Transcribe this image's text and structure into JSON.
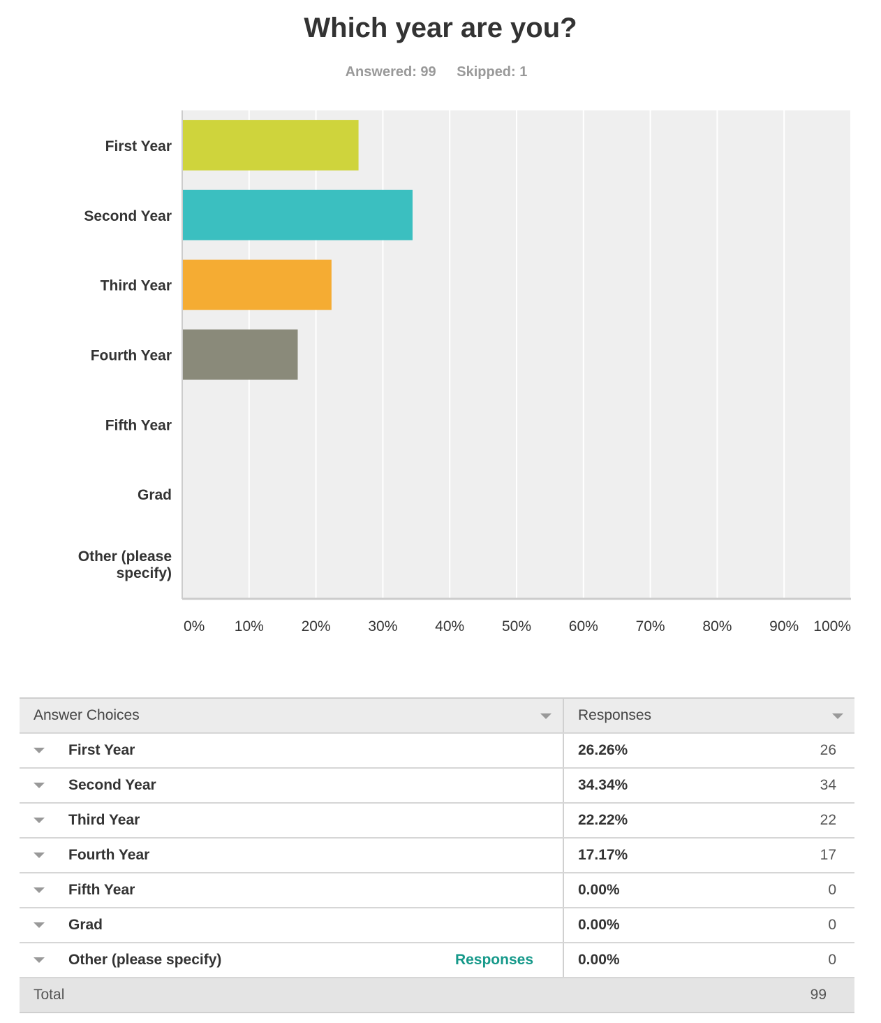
{
  "page": {
    "title": "Which year are you?",
    "answered_text": "Answered: 99",
    "skipped_text": "Skipped: 1"
  },
  "chart_data": {
    "type": "bar",
    "orientation": "horizontal",
    "categories": [
      "First Year",
      "Second Year",
      "Third Year",
      "Fourth Year",
      "Fifth Year",
      "Grad",
      "Other (please specify)"
    ],
    "category_label_lines": [
      [
        "First Year"
      ],
      [
        "Second Year"
      ],
      [
        "Third Year"
      ],
      [
        "Fourth Year"
      ],
      [
        "Fifth Year"
      ],
      [
        "Grad"
      ],
      [
        "Other (please",
        "specify)"
      ]
    ],
    "values": [
      26.26,
      34.34,
      22.22,
      17.17,
      0,
      0,
      0
    ],
    "colors": [
      "#cfd43c",
      "#3bbfc0",
      "#f5ac33",
      "#8a8a7a",
      "#e06666",
      "#6fa8dc",
      "#93c47d"
    ],
    "xlim": [
      0,
      100
    ],
    "x_ticks": [
      0,
      10,
      20,
      30,
      40,
      50,
      60,
      70,
      80,
      90,
      100
    ],
    "x_tick_labels": [
      "0%",
      "10%",
      "20%",
      "30%",
      "40%",
      "50%",
      "60%",
      "70%",
      "80%",
      "90%",
      "100%"
    ],
    "grid": true,
    "plot_background": "#efefef",
    "legend": "none"
  },
  "table": {
    "header": {
      "choices": "Answer Choices",
      "responses": "Responses"
    },
    "rows": [
      {
        "choice": "First Year",
        "percent": "26.26%",
        "count": "26"
      },
      {
        "choice": "Second Year",
        "percent": "34.34%",
        "count": "34"
      },
      {
        "choice": "Third Year",
        "percent": "22.22%",
        "count": "22"
      },
      {
        "choice": "Fourth Year",
        "percent": "17.17%",
        "count": "17"
      },
      {
        "choice": "Fifth Year",
        "percent": "0.00%",
        "count": "0"
      },
      {
        "choice": "Grad",
        "percent": "0.00%",
        "count": "0"
      },
      {
        "choice": "Other (please specify)",
        "percent": "0.00%",
        "count": "0",
        "link": "Responses"
      }
    ],
    "total_label": "Total",
    "total_value": "99",
    "link_color": "#16998a"
  }
}
